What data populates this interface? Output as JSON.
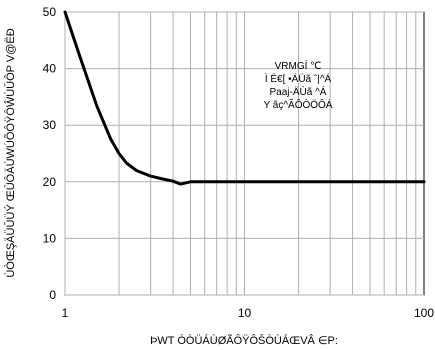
{
  "chart_data": {
    "type": "line",
    "x_scale": "log",
    "xlim": [
      1,
      100
    ],
    "ylim": [
      0,
      50
    ],
    "x_ticks": [
      1,
      10,
      100
    ],
    "y_ticks": [
      0,
      10,
      20,
      30,
      40,
      50
    ],
    "x_tick_labels": [
      "1",
      "10",
      "100"
    ],
    "y_tick_labels": [
      "0",
      "10",
      "20",
      "30",
      "40",
      "50"
    ],
    "grid": true,
    "xlabel": "ÞWT ÓÒÜÁÙØÃÔŸÔŠÒÙÁŒVÂ ∈P:",
    "ylabel": "ÙÒŒŞÄÜŪÜÝ ŒÛÔÄÚWÚÕÔŸÔŴÙŪÔP V@ËĐ",
    "annotation": [
      "VRMGÍ ℃",
      "Ì Ë€[ •ÁÜã ˆ|^Á",
      "Paaj-ÄÙã ^Á",
      "Y ãç^ÃÔÒÖÔÁ"
    ],
    "series": [
      {
        "color": "#000000",
        "x": [
          1.0,
          1.2,
          1.5,
          1.8,
          2.0,
          2.2,
          2.5,
          3.0,
          3.5,
          4.0,
          4.4,
          4.7,
          5.0,
          6,
          8,
          10,
          20,
          50,
          100
        ],
        "y": [
          50,
          42.5,
          33.5,
          27.5,
          25,
          23.3,
          22,
          21,
          20.5,
          20.1,
          19.6,
          19.8,
          20,
          20,
          20,
          20,
          20,
          20,
          20
        ]
      }
    ]
  }
}
